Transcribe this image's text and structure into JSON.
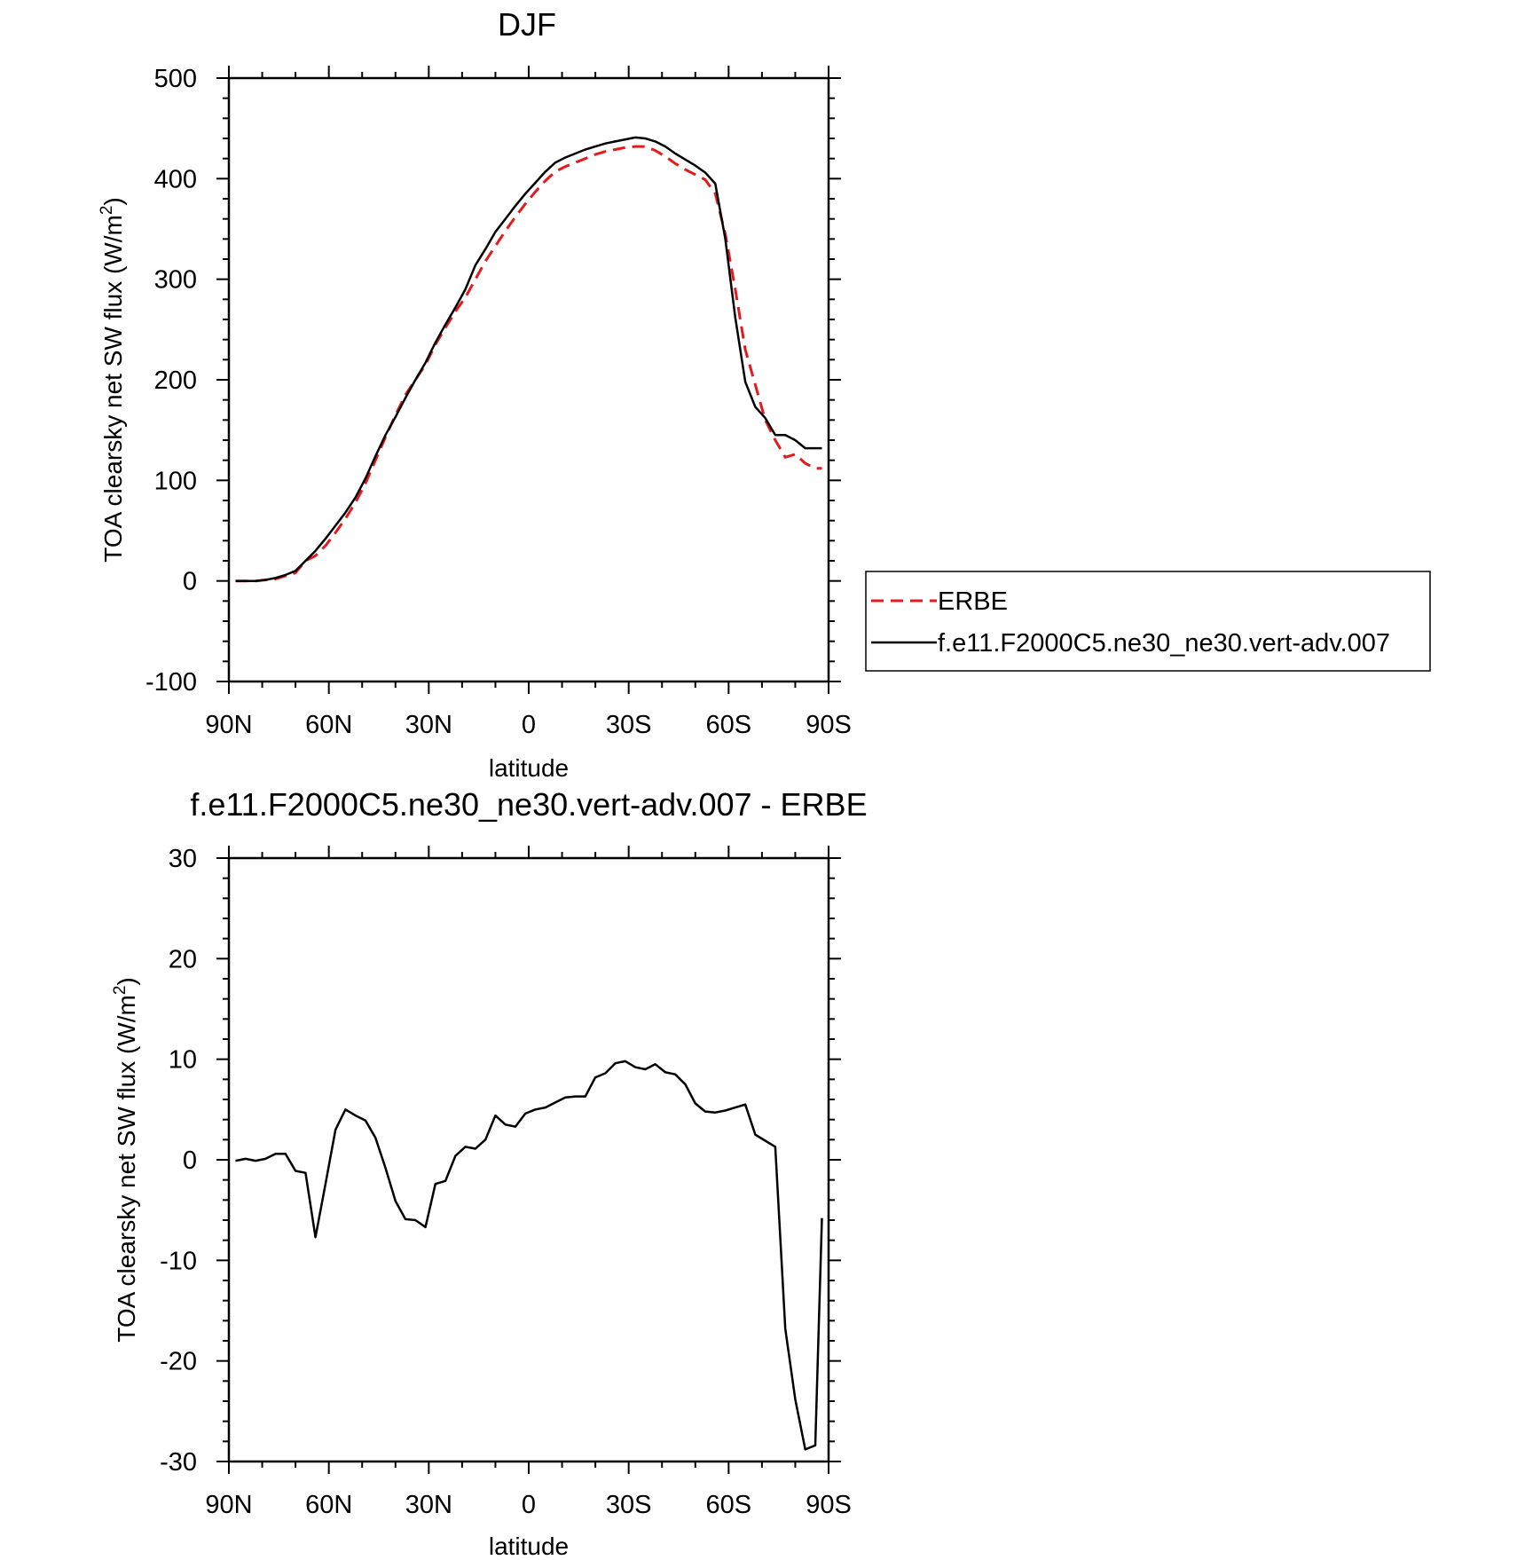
{
  "chart_data": [
    {
      "type": "line",
      "title": "DJF",
      "xlabel": "latitude",
      "ylabel": "TOA clearsky net SW flux (W/m",
      "ylabel_sup": "2",
      "ylabel_close": ")",
      "xlim": [
        90,
        -90
      ],
      "ylim": [
        -100,
        500
      ],
      "x_ticks": [
        90,
        60,
        30,
        0,
        -30,
        -60,
        -90
      ],
      "x_tick_labels": [
        "90N",
        "60N",
        "30N",
        "0",
        "30S",
        "60S",
        "90S"
      ],
      "y_ticks": [
        -100,
        0,
        100,
        200,
        300,
        400,
        500
      ],
      "y_tick_labels": [
        "-100",
        "0",
        "100",
        "200",
        "300",
        "400",
        "500"
      ],
      "legend_position": "right",
      "series": [
        {
          "name": "ERBE",
          "color": "#e41a1c",
          "style": "dashed",
          "x": [
            88,
            85,
            82,
            79,
            76,
            73,
            70,
            67,
            64,
            61,
            58,
            55,
            52,
            49,
            46,
            43,
            40,
            37,
            34,
            31,
            28,
            25,
            22,
            19,
            16,
            13,
            10,
            7,
            4,
            1,
            -2,
            -5,
            -8,
            -11,
            -14,
            -17,
            -20,
            -23,
            -26,
            -29,
            -32,
            -35,
            -38,
            -41,
            -44,
            -47,
            -50,
            -53,
            -56,
            -59,
            -62,
            -65,
            -68,
            -71,
            -74,
            -77,
            -80,
            -83,
            -86,
            -88
          ],
          "y": [
            0,
            0,
            0,
            1,
            2,
            5,
            8,
            20,
            25,
            35,
            48,
            62,
            78,
            97,
            120,
            143,
            165,
            185,
            200,
            215,
            235,
            252,
            268,
            282,
            300,
            318,
            333,
            348,
            362,
            375,
            387,
            398,
            407,
            412,
            416,
            420,
            424,
            427,
            429,
            431,
            432,
            432,
            428,
            422,
            415,
            409,
            404,
            399,
            385,
            345,
            290,
            230,
            195,
            160,
            140,
            123,
            126,
            117,
            112,
            112
          ]
        },
        {
          "name": "f.e11.F2000C5.ne30_ne30.vert-adv.007",
          "color": "#000000",
          "style": "solid",
          "x": [
            88,
            85,
            82,
            79,
            76,
            73,
            70,
            67,
            64,
            61,
            58,
            55,
            52,
            49,
            46,
            43,
            40,
            37,
            34,
            31,
            28,
            25,
            22,
            19,
            16,
            13,
            10,
            7,
            4,
            1,
            -2,
            -5,
            -8,
            -11,
            -14,
            -17,
            -20,
            -23,
            -26,
            -29,
            -32,
            -35,
            -38,
            -41,
            -44,
            -47,
            -50,
            -53,
            -56,
            -59,
            -62,
            -65,
            -68,
            -71,
            -74,
            -77,
            -80,
            -83,
            -86,
            -88
          ],
          "y": [
            0,
            0,
            0,
            1,
            3,
            6,
            10,
            20,
            30,
            42,
            55,
            68,
            83,
            102,
            124,
            145,
            163,
            182,
            200,
            217,
            237,
            255,
            272,
            290,
            314,
            330,
            347,
            360,
            373,
            385,
            396,
            407,
            416,
            421,
            425,
            429,
            432,
            435,
            437,
            439,
            441,
            440,
            437,
            432,
            425,
            419,
            413,
            406,
            395,
            340,
            262,
            198,
            173,
            162,
            145,
            145,
            140,
            132,
            132,
            132
          ]
        }
      ]
    },
    {
      "type": "line",
      "title": "f.e11.F2000C5.ne30_ne30.vert-adv.007 - ERBE",
      "xlabel": "latitude",
      "ylabel": "TOA clearsky net SW flux (W/m",
      "ylabel_sup": "2",
      "ylabel_close": ")",
      "xlim": [
        90,
        -90
      ],
      "ylim": [
        -30,
        30
      ],
      "x_ticks": [
        90,
        60,
        30,
        0,
        -30,
        -60,
        -90
      ],
      "x_tick_labels": [
        "90N",
        "60N",
        "30N",
        "0",
        "30S",
        "60S",
        "90S"
      ],
      "y_ticks": [
        -30,
        -20,
        -10,
        0,
        10,
        20,
        30
      ],
      "y_tick_labels": [
        "-30",
        "-20",
        "-10",
        "0",
        "10",
        "20",
        "30"
      ],
      "series": [
        {
          "color": "#000000",
          "style": "solid",
          "x": [
            88,
            85,
            82,
            79,
            76,
            73,
            70,
            67,
            64,
            61,
            58,
            55,
            52,
            49,
            46,
            43,
            40,
            37,
            34,
            31,
            28,
            25,
            22,
            19,
            16,
            13,
            10,
            7,
            4,
            1,
            -2,
            -5,
            -8,
            -11,
            -14,
            -17,
            -20,
            -23,
            -26,
            -29,
            -32,
            -35,
            -38,
            -41,
            -44,
            -47,
            -50,
            -53,
            -56,
            -59,
            -62,
            -65,
            -68,
            -71,
            -74,
            -77,
            -80,
            -83,
            -86,
            -88
          ],
          "y": [
            -0.1,
            0.1,
            -0.1,
            0.1,
            0.6,
            0.6,
            -1.1,
            -1.3,
            -7.7,
            -2.4,
            3.0,
            5.0,
            4.4,
            3.9,
            2.2,
            -0.8,
            -4.1,
            -5.9,
            -6.0,
            -6.7,
            -2.4,
            -2.1,
            0.4,
            1.3,
            1.1,
            2.0,
            4.4,
            3.5,
            3.3,
            4.6,
            5.0,
            5.2,
            5.7,
            6.2,
            6.3,
            6.3,
            8.2,
            8.6,
            9.6,
            9.8,
            9.2,
            9.0,
            9.5,
            8.7,
            8.5,
            7.5,
            5.6,
            4.8,
            4.7,
            4.9,
            5.2,
            5.5,
            2.5,
            1.9,
            1.3,
            -16.8,
            -23.8,
            -28.8,
            -28.4,
            -5.8
          ]
        }
      ]
    }
  ]
}
